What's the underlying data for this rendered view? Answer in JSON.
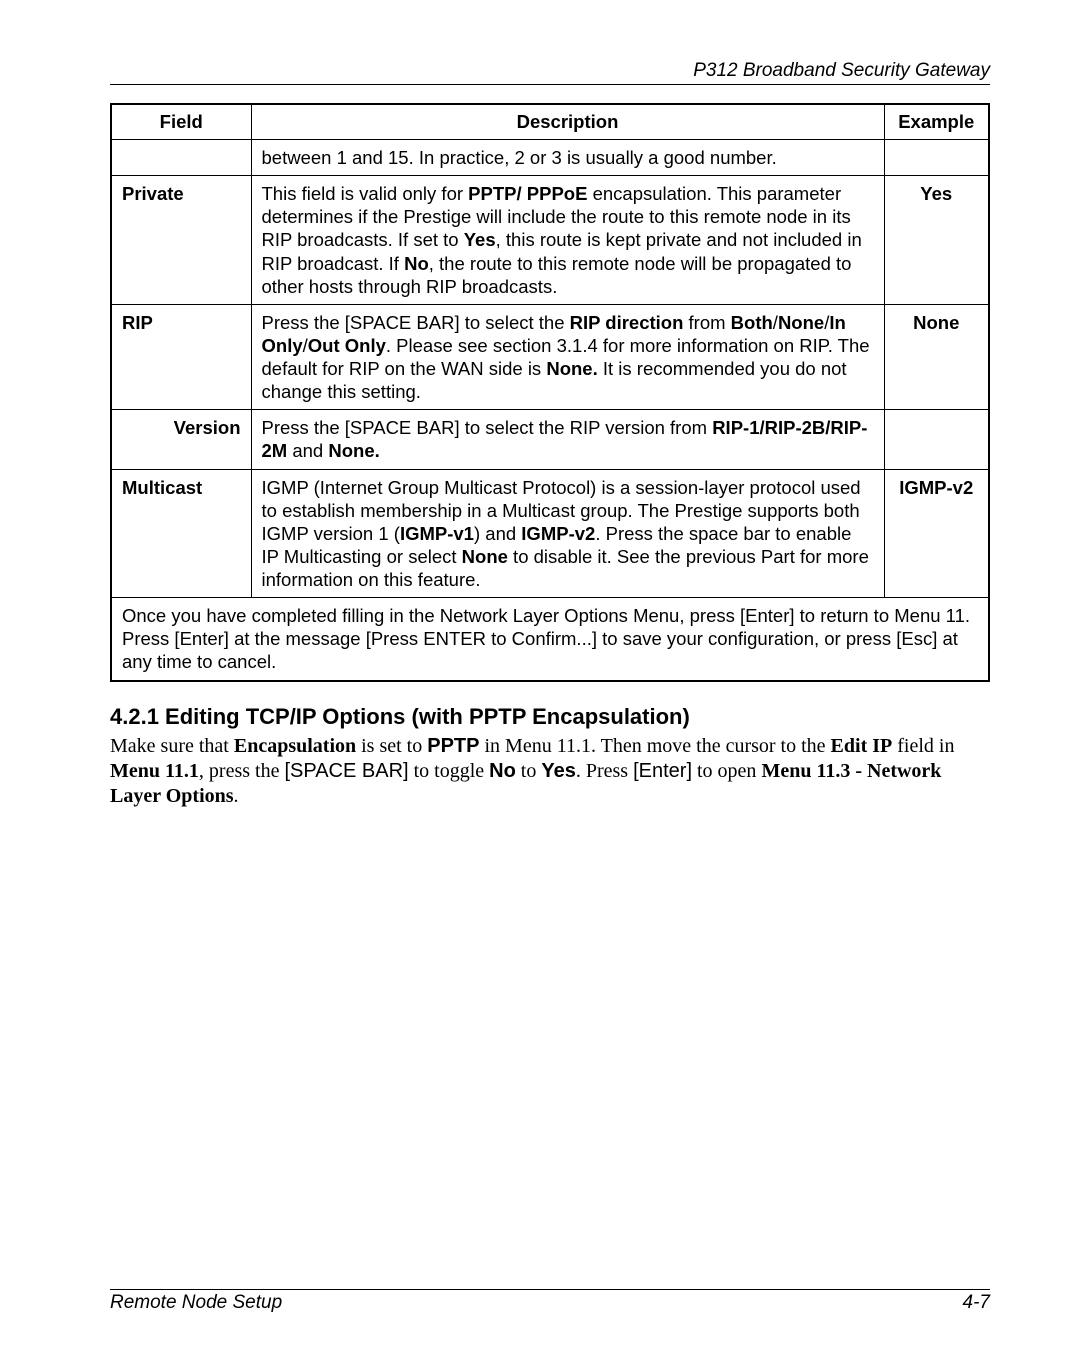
{
  "header": {
    "title": "P312  Broadband Security Gateway"
  },
  "table": {
    "columns": {
      "field": "Field",
      "description": "Description",
      "example": "Example"
    },
    "rows": {
      "row0": {
        "field": "",
        "desc_plain": "between 1 and 15. In practice, 2 or 3 is usually a good number.",
        "example": ""
      },
      "private": {
        "field": "Private",
        "d1": "This field is valid only for ",
        "d2": "PPTP/ PPPoE",
        "d3": " encapsulation. This parameter determines if the Prestige will include the route to this remote node in its RIP broadcasts. If set to ",
        "d4": "Yes",
        "d5": ", this route is kept private and not included in RIP broadcast. If ",
        "d6": "No",
        "d7": ", the route to this remote node will be propagated to other hosts through RIP broadcasts.",
        "example": "Yes"
      },
      "rip": {
        "field": "RIP",
        "d1": "Press the [SPACE BAR] to select the ",
        "d2": "RIP direction",
        "d3": " from ",
        "d4": "Both",
        "d5": "/",
        "d6": "None",
        "d7": "/",
        "d8": "In Only",
        "d9": "/",
        "d10": "Out Only",
        "d11": ". Please see section 3.1.4 for more information on RIP. The default for RIP on the WAN side is ",
        "d12": "None.",
        "d13": " It is recommended you do not change this setting.",
        "example": "None"
      },
      "version": {
        "field": "Version",
        "d1": "Press the [SPACE BAR] to select the RIP version from ",
        "d2": "RIP-1/RIP-2B/RIP-2M",
        "d3": " and ",
        "d4": "None.",
        "example": ""
      },
      "multicast": {
        "field": "Multicast",
        "d1": "IGMP (Internet Group Multicast Protocol) is a session-layer protocol used to establish membership in a Multicast group. The Prestige supports both IGMP version 1 (",
        "d2": "IGMP-v1",
        "d3": ") and ",
        "d4": "IGMP-v2",
        "d5": ". Press the space bar to enable IP Multicasting or select ",
        "d6": "None",
        "d7": " to disable it. See the previous Part for more information on this feature.",
        "example": "IGMP-v2"
      }
    },
    "footer": "Once you have completed filling in the Network Layer Options Menu, press [Enter] to return to Menu 11. Press [Enter] at the message [Press ENTER to Confirm...] to save your configuration, or press [Esc] at any time to cancel."
  },
  "section": {
    "number_title": "4.2.1  Editing TCP/IP Options (with PPTP Encapsulation)",
    "p1": "Make sure that ",
    "p2": "Encapsulation",
    "p3": " is set to ",
    "p4": "PPTP",
    "p5": " in Menu 11.1. Then move the cursor to the ",
    "p6": "Edit IP",
    "p7": " field in ",
    "p8": "Menu 11.1",
    "p9": ", press the ",
    "p10": "[SPACE BAR]",
    "p11": " to toggle ",
    "p12": "No",
    "p13": " to ",
    "p14": "Yes",
    "p15": ".  Press ",
    "p16": "[Enter]",
    "p17": " to open ",
    "p18": "Menu 11.3 - Network Layer Options",
    "p19": "."
  },
  "footer": {
    "left": "Remote Node Setup",
    "right": "4-7"
  }
}
